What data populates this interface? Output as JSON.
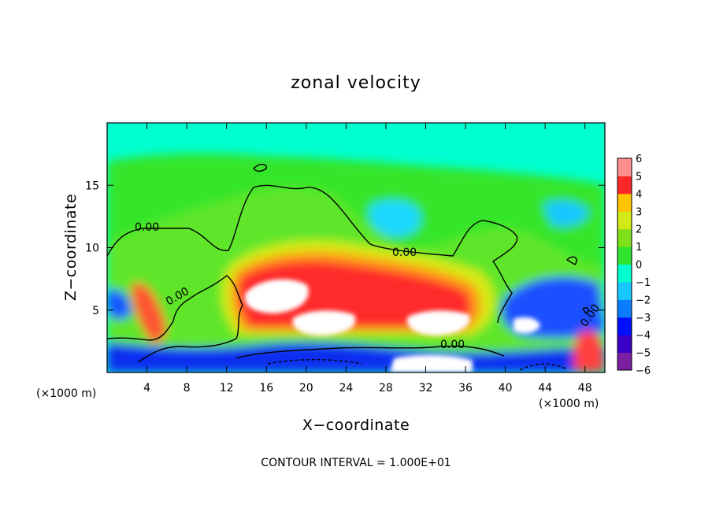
{
  "chart_data": {
    "type": "heatmap",
    "title": "zonal velocity",
    "xlabel": "X−coordinate",
    "ylabel": "Z−coordinate",
    "x_unit_left": "(×1000 m)",
    "x_unit_right": "(×1000 m)",
    "xlim": [
      0,
      50
    ],
    "ylim": [
      0,
      20
    ],
    "x_ticks": [
      "4",
      "8",
      "12",
      "16",
      "20",
      "24",
      "28",
      "32",
      "36",
      "40",
      "44",
      "48"
    ],
    "y_ticks": [
      "5",
      "10",
      "15"
    ],
    "colorbar": {
      "ticks": [
        "6",
        "5",
        "4",
        "3",
        "2",
        "1",
        "0",
        "−1",
        "−2",
        "−3",
        "−4",
        "−5",
        "−6"
      ],
      "range": [
        -6,
        6
      ]
    },
    "contour_labels": [
      "0.00",
      "0.00",
      "0.00",
      "0.00",
      "0.00"
    ],
    "footer": "CONTOUR INTERVAL = 1.000E+01",
    "features": [
      {
        "region": "upper layer (z 15–20)",
        "value": 0.5
      },
      {
        "region": "broad mid layer",
        "value": 1
      },
      {
        "region": "jet core x 14–38, z 3–9",
        "value": 6
      },
      {
        "region": "cyan blob x 28, z 12",
        "value": -3
      },
      {
        "region": "near-surface band z 1–3",
        "value": -5
      }
    ]
  },
  "colors": {
    "scale": [
      "#7a1fa2",
      "#3a00c8",
      "#0010ff",
      "#0b7bff",
      "#17c8ff",
      "#00ffd0",
      "#2fe32f",
      "#7fe01a",
      "#d4ea18",
      "#ffc400",
      "#ff6e1a",
      "#ff2828",
      "#ff8e8e",
      "#ffffff"
    ]
  }
}
